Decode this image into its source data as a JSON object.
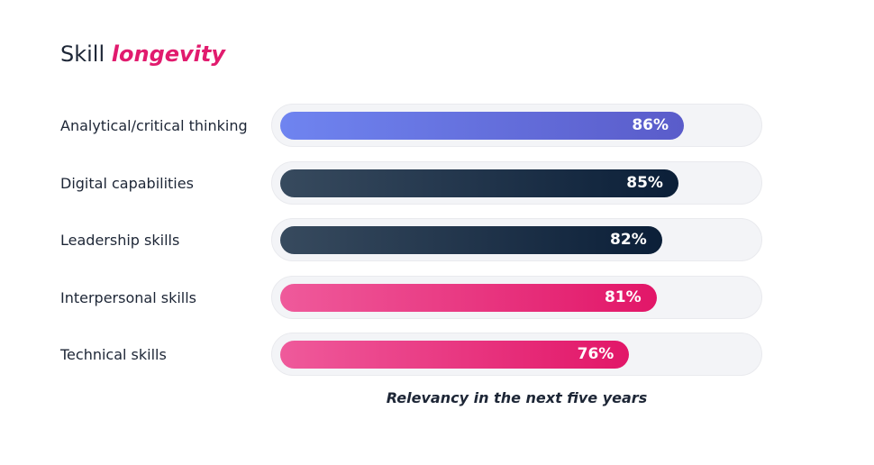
{
  "title": {
    "main": "Skill",
    "accent": "longevity"
  },
  "colors": {
    "title_accent": "#e11b6e",
    "track": "#f3f4f7",
    "series": {
      "purple": [
        "#6f84f0",
        "#5a5cca"
      ],
      "navy": [
        "#374a5e",
        "#0b1f38"
      ],
      "pink": [
        "#ef5a9b",
        "#e21668"
      ]
    }
  },
  "chart_data": {
    "type": "bar",
    "orientation": "horizontal",
    "categories": [
      "Analytical/critical thinking",
      "Digital capabilities",
      "Leadership skills",
      "Interpersonal skills",
      "Technical skills"
    ],
    "values": [
      86,
      85,
      82,
      81,
      76
    ],
    "value_labels": [
      "86%",
      "85%",
      "82%",
      "81%",
      "76%"
    ],
    "bar_colors": [
      "purple",
      "navy",
      "navy",
      "pink",
      "pink"
    ],
    "xlabel": "Relevancy in the next five years",
    "xlim": [
      0,
      100
    ],
    "grid": false
  }
}
